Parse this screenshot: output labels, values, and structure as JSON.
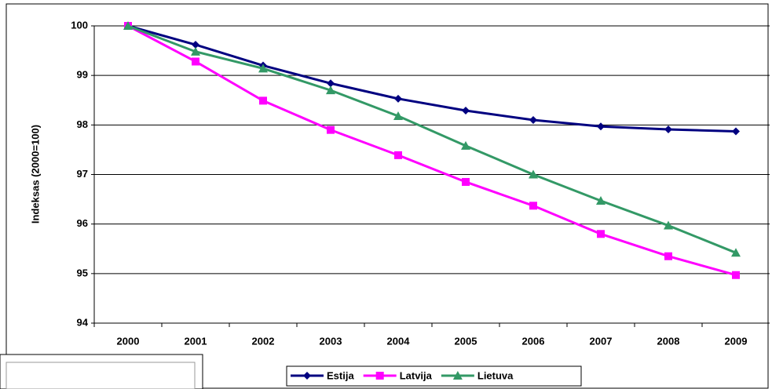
{
  "chart_data": {
    "type": "line",
    "y_label": "Indeksas (2000=100)",
    "categories": [
      "2000",
      "2001",
      "2002",
      "2003",
      "2004",
      "2005",
      "2006",
      "2007",
      "2008",
      "2009"
    ],
    "series": [
      {
        "name": "Estija",
        "color": "#000080",
        "values": [
          100,
          99.62,
          99.2,
          98.84,
          98.53,
          98.29,
          98.1,
          97.97,
          97.91,
          97.87
        ]
      },
      {
        "name": "Latvija",
        "color": "#ff00ff",
        "values": [
          100,
          99.28,
          98.49,
          97.9,
          97.39,
          96.85,
          96.37,
          95.8,
          95.35,
          94.97
        ]
      },
      {
        "name": "Lietuva",
        "color": "#339966",
        "values": [
          100,
          99.48,
          99.14,
          98.7,
          98.18,
          97.58,
          97.0,
          96.47,
          95.97,
          95.42
        ]
      }
    ],
    "ylim": [
      94,
      100
    ],
    "yticks": [
      94,
      95,
      96,
      97,
      98,
      99,
      100
    ],
    "grid": true
  }
}
